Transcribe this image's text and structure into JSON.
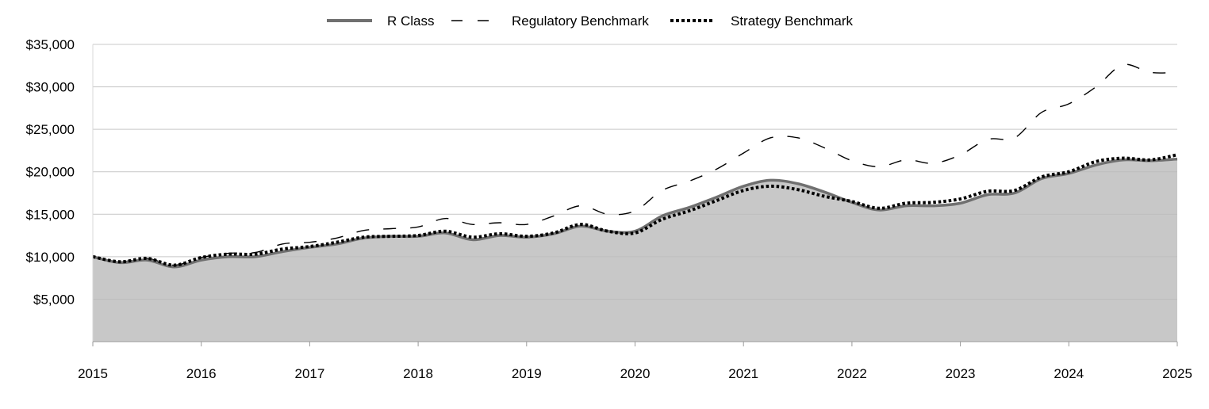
{
  "chart_data": {
    "type": "area",
    "x_labels": [
      "2015",
      "2016",
      "2017",
      "2018",
      "2019",
      "2020",
      "2021",
      "2022",
      "2023",
      "2024",
      "2025"
    ],
    "ylim": [
      0,
      35000
    ],
    "y_ticks": [
      5000,
      10000,
      15000,
      20000,
      25000,
      30000,
      35000
    ],
    "y_tick_labels": [
      "$5,000",
      "$10,000",
      "$15,000",
      "$20,000",
      "$25,000",
      "$30,000",
      "$35,000"
    ],
    "grid": true,
    "legend_position": "top-center",
    "series": [
      {
        "name": "R Class",
        "style": "solid-area",
        "color": "#707070",
        "fill": "#c8c8c8",
        "x": [
          2015.0,
          2015.25,
          2015.5,
          2015.75,
          2016.0,
          2016.25,
          2016.5,
          2016.75,
          2017.0,
          2017.25,
          2017.5,
          2017.75,
          2018.0,
          2018.25,
          2018.5,
          2018.75,
          2019.0,
          2019.25,
          2019.5,
          2019.75,
          2020.0,
          2020.25,
          2020.5,
          2020.75,
          2021.0,
          2021.25,
          2021.5,
          2021.75,
          2022.0,
          2022.25,
          2022.5,
          2022.75,
          2023.0,
          2023.25,
          2023.5,
          2023.75,
          2024.0,
          2024.25,
          2024.5,
          2024.75,
          2025.0
        ],
        "values": [
          10000,
          9300,
          9600,
          8800,
          9600,
          10000,
          10000,
          10600,
          11100,
          11500,
          12200,
          12400,
          12400,
          12800,
          12000,
          12500,
          12300,
          12700,
          13600,
          13000,
          13000,
          14800,
          15800,
          17000,
          18300,
          19000,
          18600,
          17600,
          16400,
          15500,
          16000,
          16000,
          16300,
          17300,
          17500,
          19200,
          19800,
          20800,
          21400,
          21300,
          21500
        ]
      },
      {
        "name": "Regulatory Benchmark",
        "style": "long-dash",
        "color": "#000000",
        "x": [
          2015.0,
          2015.25,
          2015.5,
          2015.75,
          2016.0,
          2016.25,
          2016.5,
          2016.75,
          2017.0,
          2017.25,
          2017.5,
          2017.75,
          2018.0,
          2018.25,
          2018.5,
          2018.75,
          2019.0,
          2019.25,
          2019.5,
          2019.75,
          2020.0,
          2020.25,
          2020.5,
          2020.75,
          2021.0,
          2021.25,
          2021.5,
          2021.75,
          2022.0,
          2022.25,
          2022.5,
          2022.75,
          2023.0,
          2023.25,
          2023.5,
          2023.75,
          2024.0,
          2024.25,
          2024.5,
          2024.75,
          2025.0
        ],
        "values": [
          10000,
          9400,
          9800,
          9000,
          9900,
          10400,
          10500,
          11500,
          11700,
          12200,
          13100,
          13300,
          13500,
          14500,
          13800,
          14000,
          13800,
          14800,
          16000,
          15000,
          15400,
          17800,
          18900,
          20300,
          22200,
          24000,
          24000,
          22800,
          21300,
          20600,
          21400,
          21000,
          22000,
          23800,
          24000,
          27000,
          28000,
          30000,
          32600,
          31700,
          31700
        ]
      },
      {
        "name": "Strategy Benchmark",
        "style": "dotted",
        "color": "#000000",
        "x": [
          2015.0,
          2015.25,
          2015.5,
          2015.75,
          2016.0,
          2016.25,
          2016.5,
          2016.75,
          2017.0,
          2017.25,
          2017.5,
          2017.75,
          2018.0,
          2018.25,
          2018.5,
          2018.75,
          2019.0,
          2019.25,
          2019.5,
          2019.75,
          2020.0,
          2020.25,
          2020.5,
          2020.75,
          2021.0,
          2021.25,
          2021.5,
          2021.75,
          2022.0,
          2022.25,
          2022.5,
          2022.75,
          2023.0,
          2023.25,
          2023.5,
          2023.75,
          2024.0,
          2024.25,
          2024.5,
          2024.75,
          2025.0
        ],
        "values": [
          10000,
          9400,
          9800,
          9000,
          9900,
          10300,
          10300,
          10900,
          11200,
          11700,
          12300,
          12400,
          12500,
          13000,
          12300,
          12700,
          12400,
          12800,
          13800,
          13000,
          12800,
          14400,
          15400,
          16600,
          17800,
          18300,
          17900,
          17100,
          16500,
          15700,
          16300,
          16400,
          16800,
          17700,
          17800,
          19400,
          20000,
          21200,
          21600,
          21400,
          22000
        ]
      }
    ]
  }
}
